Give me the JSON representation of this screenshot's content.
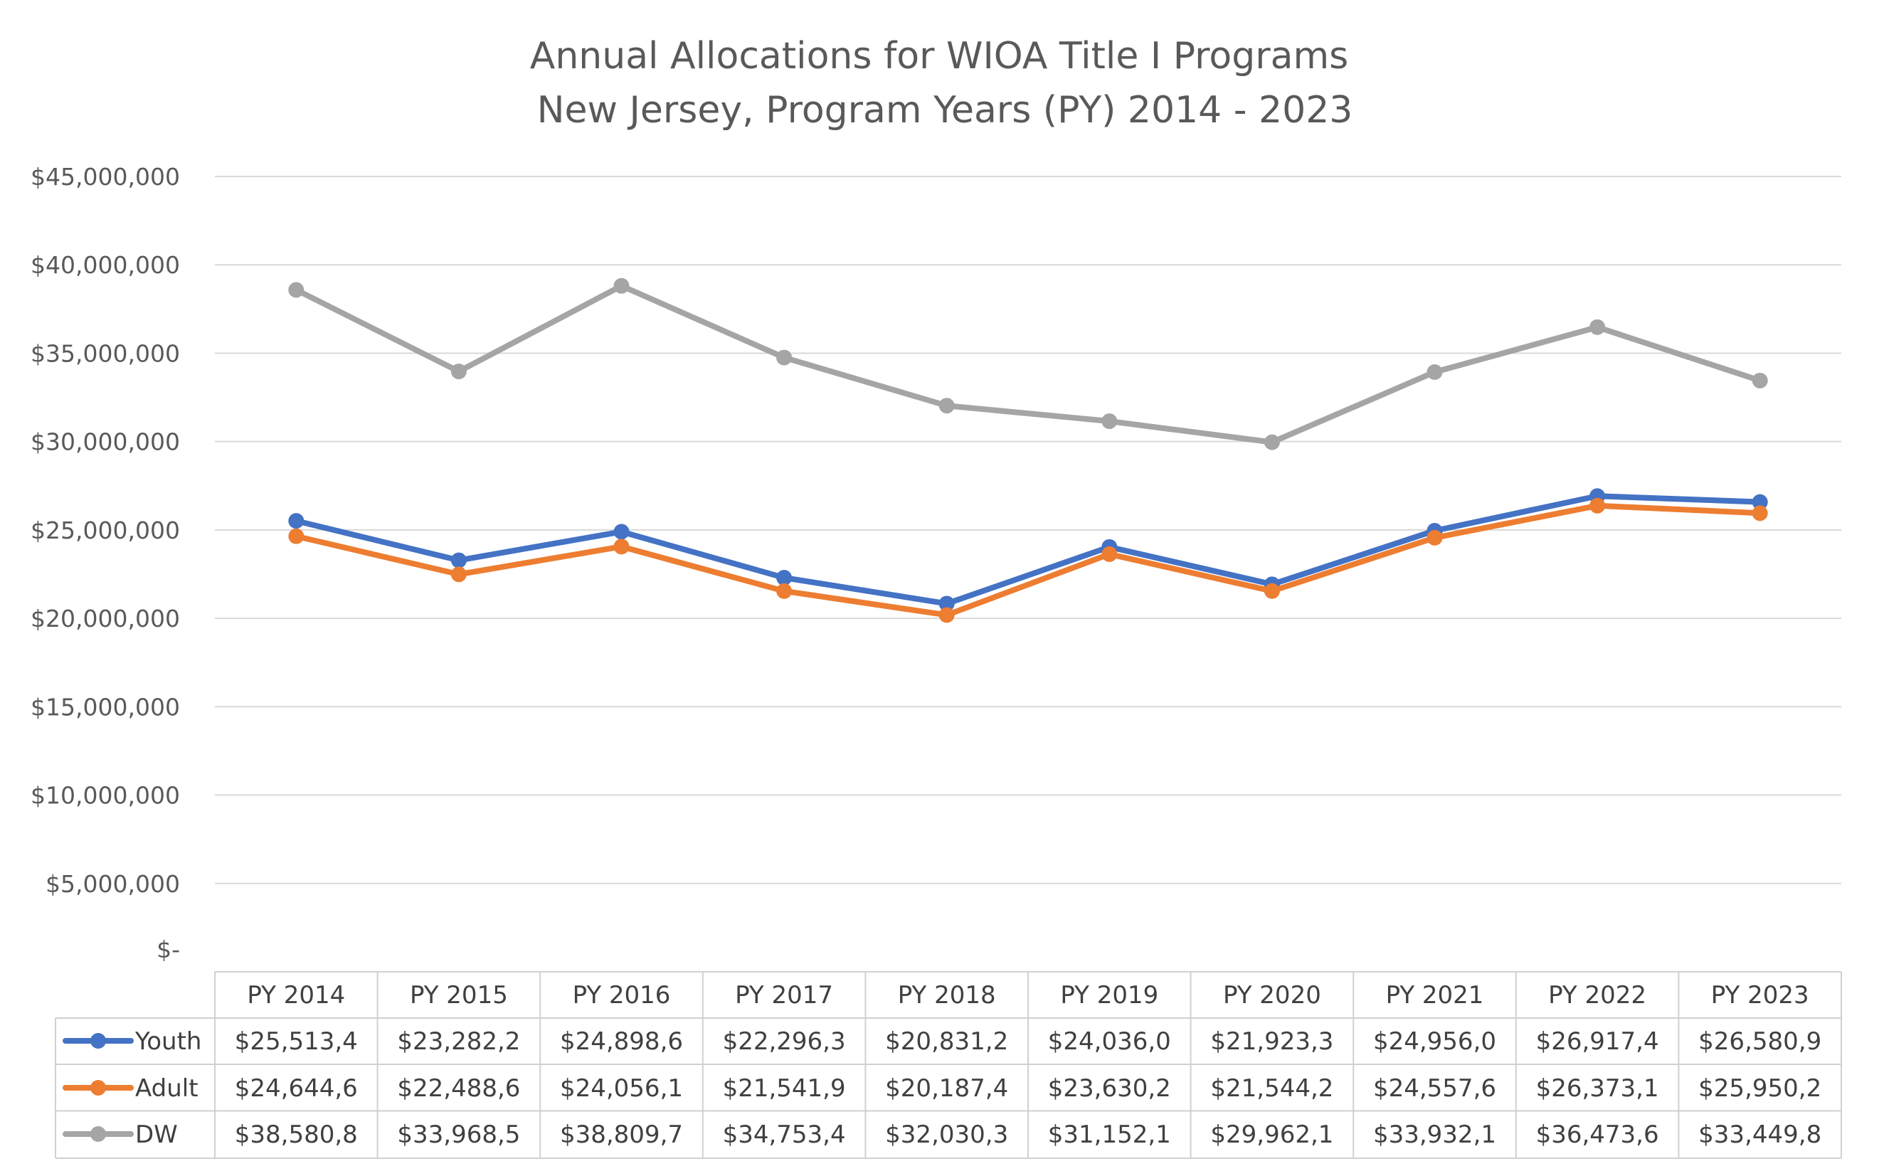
{
  "chart_data": {
    "type": "line",
    "title_lines": [
      "Annual Allocations for WIOA Title I Programs",
      "New Jersey, Program Years (PY) 2014 - 2023"
    ],
    "categories": [
      "PY 2014",
      "PY 2015",
      "PY 2016",
      "PY 2017",
      "PY 2018",
      "PY 2019",
      "PY 2020",
      "PY 2021",
      "PY 2022",
      "PY 2023"
    ],
    "ylim": [
      0,
      45000000
    ],
    "y_tick_labels": [
      "$-",
      "$5,000,000",
      "$10,000,000",
      "$15,000,000",
      "$20,000,000",
      "$25,000,000",
      "$30,000,000",
      "$35,000,000",
      "$40,000,000",
      "$45,000,000"
    ],
    "grid": true,
    "legend_placement": "data-table",
    "series": [
      {
        "name": "Youth",
        "color": "#4472C4",
        "values": [
          25513400,
          23282200,
          24898600,
          22296300,
          20831200,
          24036000,
          21923300,
          24956000,
          26917400,
          26580900
        ],
        "table_labels": [
          "$25,513,4",
          "$23,282,2",
          "$24,898,6",
          "$22,296,3",
          "$20,831,2",
          "$24,036,0",
          "$21,923,3",
          "$24,956,0",
          "$26,917,4",
          "$26,580,9"
        ]
      },
      {
        "name": "Adult",
        "color": "#ED7D31",
        "values": [
          24644600,
          22488600,
          24056100,
          21541900,
          20187400,
          23630200,
          21544200,
          24557600,
          26373100,
          25950200
        ],
        "table_labels": [
          "$24,644,6",
          "$22,488,6",
          "$24,056,1",
          "$21,541,9",
          "$20,187,4",
          "$23,630,2",
          "$21,544,2",
          "$24,557,6",
          "$26,373,1",
          "$25,950,2"
        ]
      },
      {
        "name": "DW",
        "color": "#A5A5A5",
        "values": [
          38580800,
          33968500,
          38809700,
          34753400,
          32030300,
          31152100,
          29962100,
          33932100,
          36473600,
          33449800
        ],
        "table_labels": [
          "$38,580,8",
          "$33,968,5",
          "$38,809,7",
          "$34,753,4",
          "$32,030,3",
          "$31,152,1",
          "$29,962,1",
          "$33,932,1",
          "$36,473,6",
          "$33,449,8"
        ]
      }
    ]
  }
}
